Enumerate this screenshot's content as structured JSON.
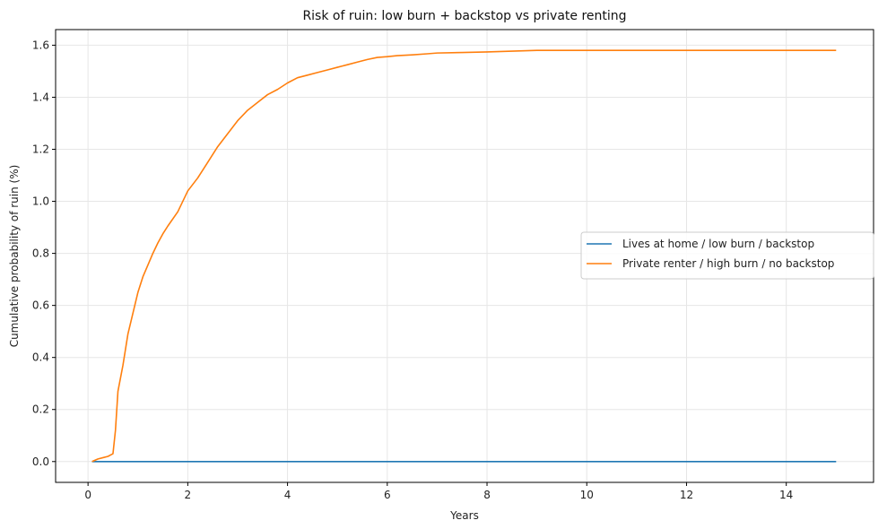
{
  "chart_data": {
    "type": "line",
    "title": "Risk of ruin: low burn + backstop vs private renting",
    "xlabel": "Years",
    "ylabel": "Cumulative probability of ruin (%)",
    "xlim": [
      -0.65,
      15.75
    ],
    "ylim": [
      -0.08,
      1.66
    ],
    "xticks": [
      0,
      2,
      4,
      6,
      8,
      10,
      12,
      14
    ],
    "yticks": [
      0.0,
      0.2,
      0.4,
      0.6,
      0.8,
      1.0,
      1.2,
      1.4,
      1.6
    ],
    "grid": true,
    "legend_position": "center-right",
    "series": [
      {
        "name": "Lives at home / low burn / backstop",
        "color": "#1f77b4",
        "x": [
          0.08,
          15.0
        ],
        "y": [
          0.0,
          0.0
        ]
      },
      {
        "name": "Private renter / high burn / no backstop",
        "color": "#ff7f0e",
        "x": [
          0.08,
          0.2,
          0.3,
          0.4,
          0.5,
          0.55,
          0.6,
          0.7,
          0.8,
          0.9,
          1.0,
          1.1,
          1.2,
          1.3,
          1.4,
          1.5,
          1.6,
          1.8,
          2.0,
          2.2,
          2.4,
          2.5,
          2.6,
          2.8,
          3.0,
          3.2,
          3.4,
          3.6,
          3.8,
          4.0,
          4.2,
          4.4,
          4.6,
          4.8,
          5.0,
          5.2,
          5.4,
          5.6,
          5.8,
          6.0,
          6.2,
          6.5,
          6.8,
          7.0,
          7.5,
          8.0,
          8.5,
          9.0,
          9.5,
          10.0,
          11.0,
          12.0,
          13.0,
          14.0,
          15.0
        ],
        "y": [
          0.0,
          0.01,
          0.015,
          0.02,
          0.03,
          0.12,
          0.27,
          0.37,
          0.49,
          0.57,
          0.65,
          0.71,
          0.755,
          0.8,
          0.84,
          0.875,
          0.905,
          0.96,
          1.04,
          1.09,
          1.15,
          1.18,
          1.21,
          1.26,
          1.31,
          1.35,
          1.38,
          1.41,
          1.43,
          1.455,
          1.475,
          1.485,
          1.495,
          1.505,
          1.515,
          1.525,
          1.535,
          1.545,
          1.553,
          1.556,
          1.56,
          1.563,
          1.567,
          1.57,
          1.572,
          1.574,
          1.577,
          1.58,
          1.58,
          1.58,
          1.58,
          1.58,
          1.58,
          1.58,
          1.58
        ]
      }
    ]
  }
}
